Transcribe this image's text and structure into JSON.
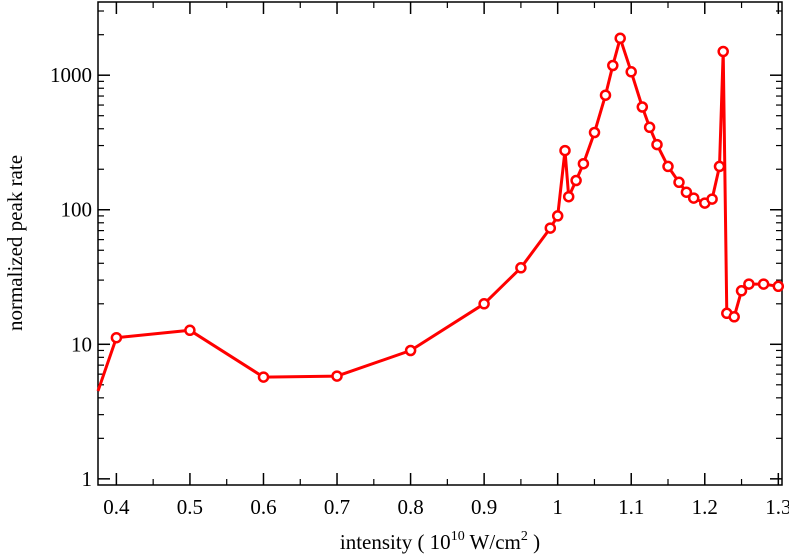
{
  "chart_data": {
    "type": "line",
    "xlabel": {
      "prefix": "intensity ( 10",
      "exp": "10",
      "mid": " W/cm",
      "exp2": "2",
      "suffix": " )"
    },
    "ylabel": "normalized peak rate",
    "xlim": [
      0.375,
      1.305
    ],
    "ylim": [
      0.9,
      3500
    ],
    "yscale": "log",
    "grid": false,
    "x_ticks": [
      0.4,
      0.5,
      0.6,
      0.7,
      0.8,
      0.9,
      1.0,
      1.1,
      1.2,
      1.3
    ],
    "x_tick_labels": [
      "0.4",
      "0.5",
      "0.6",
      "0.7",
      "0.8",
      "0.9",
      "1",
      "1.1",
      "1.2",
      "1.3"
    ],
    "y_ticks": [
      1,
      10,
      100,
      1000
    ],
    "y_tick_labels": [
      "1",
      "10",
      "100",
      "1000"
    ],
    "color": "#ff0000",
    "series": [
      {
        "line_start": {
          "x": 0.375,
          "y": 4.5
        },
        "x": [
          0.4,
          0.5,
          0.6,
          0.7,
          0.8,
          0.9,
          0.95,
          0.99,
          1.0,
          1.01,
          1.015,
          1.025,
          1.035,
          1.05,
          1.065,
          1.075,
          1.085,
          1.1,
          1.115,
          1.125,
          1.135,
          1.15,
          1.165,
          1.175,
          1.185,
          1.2,
          1.21,
          1.22,
          1.225,
          1.23,
          1.24,
          1.25,
          1.26,
          1.28,
          1.3
        ],
        "y": [
          11.2,
          12.7,
          5.7,
          5.8,
          9.0,
          20,
          37,
          73,
          90,
          275,
          125,
          165,
          220,
          375,
          710,
          1180,
          1880,
          1060,
          580,
          410,
          305,
          210,
          160,
          135,
          122,
          112,
          120,
          210,
          1500,
          17,
          16,
          25,
          28,
          28,
          27
        ]
      }
    ]
  }
}
